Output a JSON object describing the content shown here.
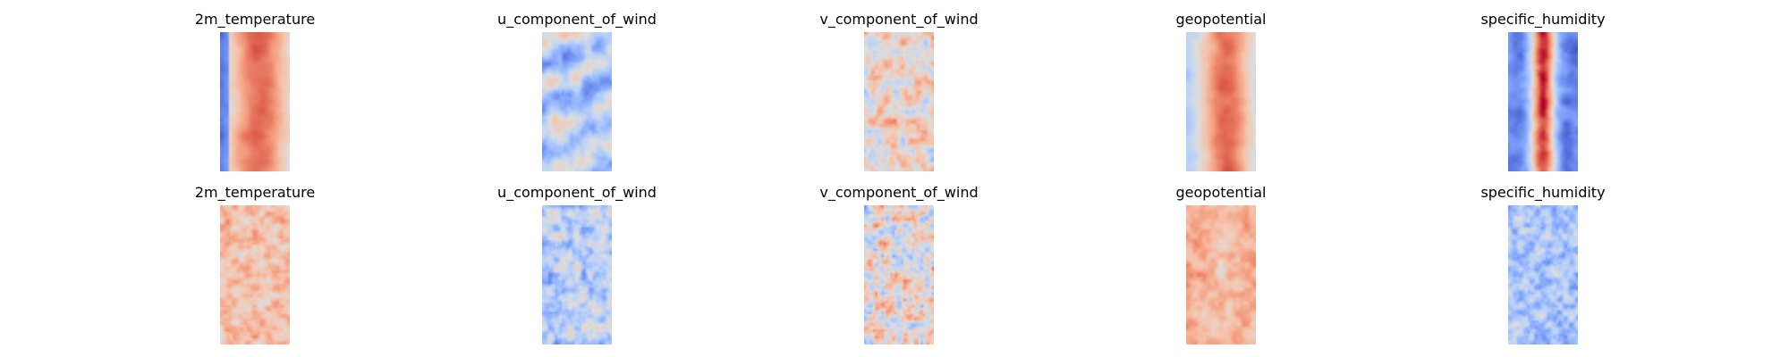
{
  "chart_data": {
    "type": "heatmap",
    "colormap": "coolwarm",
    "axes_visible": false,
    "rows": 2,
    "columns": 5,
    "panels": [
      {
        "row": 0,
        "col": 0,
        "title": "2m_temperature",
        "pattern": "temperature_smooth"
      },
      {
        "row": 0,
        "col": 1,
        "title": "u_component_of_wind",
        "pattern": "u_wind_smooth"
      },
      {
        "row": 0,
        "col": 2,
        "title": "v_component_of_wind",
        "pattern": "v_wind_smooth"
      },
      {
        "row": 0,
        "col": 3,
        "title": "geopotential",
        "pattern": "geopotential_smooth"
      },
      {
        "row": 0,
        "col": 4,
        "title": "specific_humidity",
        "pattern": "humidity_smooth"
      },
      {
        "row": 1,
        "col": 0,
        "title": "2m_temperature",
        "pattern": "temperature_noisy"
      },
      {
        "row": 1,
        "col": 1,
        "title": "u_component_of_wind",
        "pattern": "u_wind_noisy"
      },
      {
        "row": 1,
        "col": 2,
        "title": "v_component_of_wind",
        "pattern": "v_wind_noisy"
      },
      {
        "row": 1,
        "col": 3,
        "title": "geopotential",
        "pattern": "geopotential_noisy"
      },
      {
        "row": 1,
        "col": 4,
        "title": "specific_humidity",
        "pattern": "humidity_noisy"
      }
    ]
  }
}
